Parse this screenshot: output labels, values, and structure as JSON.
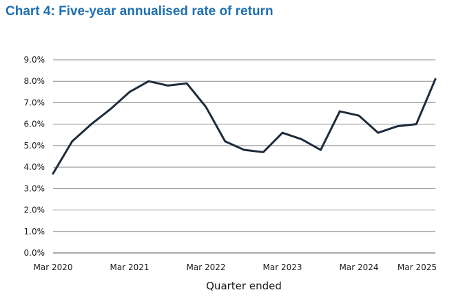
{
  "chart_data": {
    "type": "line",
    "title": "Chart 4: Five-year annualised rate of return",
    "xlabel": "Quarter ended",
    "ylabel": "",
    "ylim": [
      0,
      9
    ],
    "ytick_values": [
      0,
      1,
      2,
      3,
      4,
      5,
      6,
      7,
      8,
      9
    ],
    "ytick_labels": [
      "0.0%",
      "1.0%",
      "2.0%",
      "3.0%",
      "4.0%",
      "5.0%",
      "6.0%",
      "7.0%",
      "8.0%",
      "9.0%"
    ],
    "x": [
      "Mar 2020",
      "Jun 2020",
      "Sep 2020",
      "Dec 2020",
      "Mar 2021",
      "Jun 2021",
      "Sep 2021",
      "Dec 2021",
      "Mar 2022",
      "Jun 2022",
      "Sep 2022",
      "Dec 2022",
      "Mar 2023",
      "Jun 2023",
      "Sep 2023",
      "Dec 2023",
      "Mar 2024",
      "Jun 2024",
      "Sep 2024",
      "Dec 2024",
      "Mar 2025"
    ],
    "xtick_labels": [
      "Mar 2020",
      "Mar 2021",
      "Mar 2022",
      "Mar 2023",
      "Mar 2024",
      "Mar 2025"
    ],
    "series": [
      {
        "values": [
          3.7,
          5.2,
          6.0,
          6.7,
          7.5,
          8.0,
          7.8,
          7.9,
          6.8,
          5.2,
          4.8,
          4.7,
          5.6,
          5.3,
          4.8,
          6.6,
          6.4,
          5.6,
          5.9,
          6.0,
          8.1
        ]
      }
    ],
    "grid": true,
    "line_color": "#1d2b3a",
    "grid_color": "#8a8a8a",
    "title_color": "#1f6fb2"
  }
}
